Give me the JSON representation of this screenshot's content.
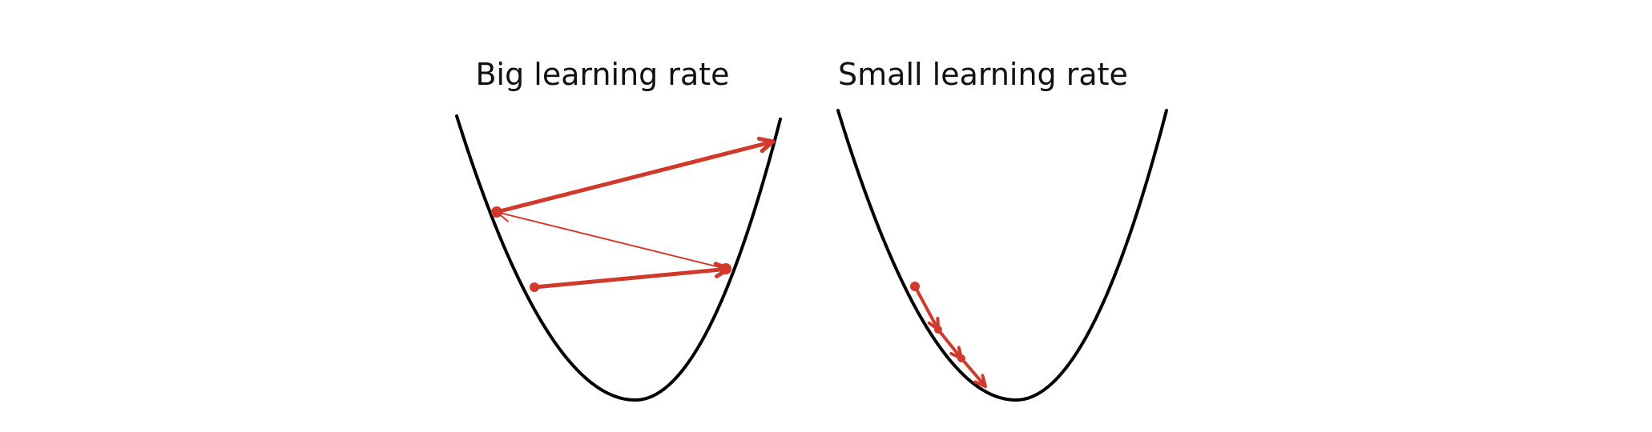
{
  "panels": [
    {
      "title": "Big learning rate",
      "steps": 3
    },
    {
      "title": "Small learning rate",
      "steps": 3
    }
  ],
  "colors": {
    "curve": "#000000",
    "steps": "#d0392b",
    "background": "#ffffff",
    "title": "#111111"
  }
}
